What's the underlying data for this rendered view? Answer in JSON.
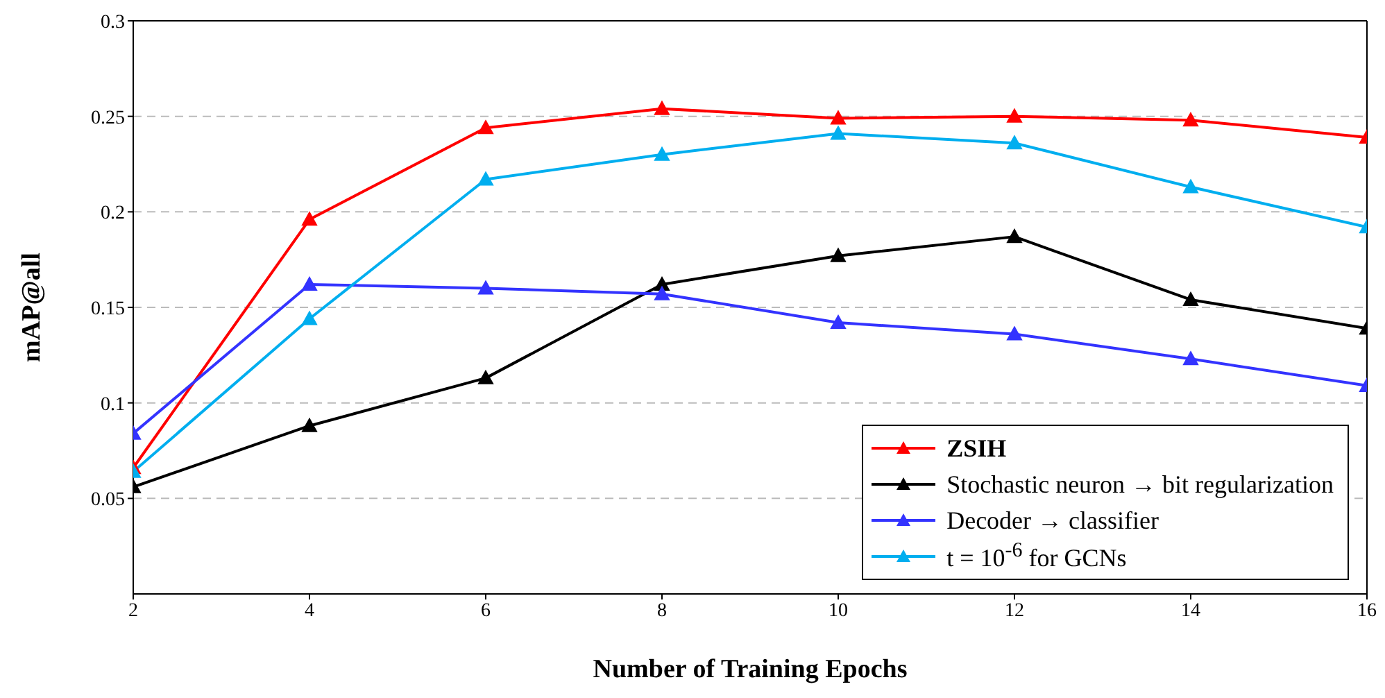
{
  "chart_data": {
    "type": "line",
    "xlabel": "Number of Training Epochs",
    "ylabel": "mAP@all",
    "x": [
      2,
      4,
      6,
      8,
      10,
      12,
      14,
      16
    ],
    "series": [
      {
        "name": "ZSIH",
        "color": "#ff0000",
        "values": [
          0.066,
          0.196,
          0.244,
          0.254,
          0.249,
          0.25,
          0.248,
          0.239
        ]
      },
      {
        "name": "Stochastic neuron → bit regularization",
        "color": "#000000",
        "values": [
          0.056,
          0.088,
          0.113,
          0.162,
          0.177,
          0.187,
          0.154,
          0.139
        ]
      },
      {
        "name": "Decoder → classifier",
        "color": "#3333ff",
        "values": [
          0.084,
          0.162,
          0.16,
          0.157,
          0.142,
          0.136,
          0.123,
          0.109
        ]
      },
      {
        "name": "t = 10$^{-6}$ for GCNs",
        "color": "#00aeef",
        "values": [
          0.064,
          0.144,
          0.217,
          0.23,
          0.241,
          0.236,
          0.213,
          0.192
        ]
      }
    ],
    "xlim": [
      2,
      16
    ],
    "xticks": [
      2,
      4,
      6,
      8,
      10,
      12,
      14,
      16
    ],
    "ylim": [
      0,
      0.3
    ],
    "yticks": [
      0.05,
      0.1,
      0.15,
      0.2,
      0.25,
      0.3
    ],
    "grid": "y",
    "legend": "bottom right",
    "marker": "triangle",
    "line_style": "solid"
  }
}
